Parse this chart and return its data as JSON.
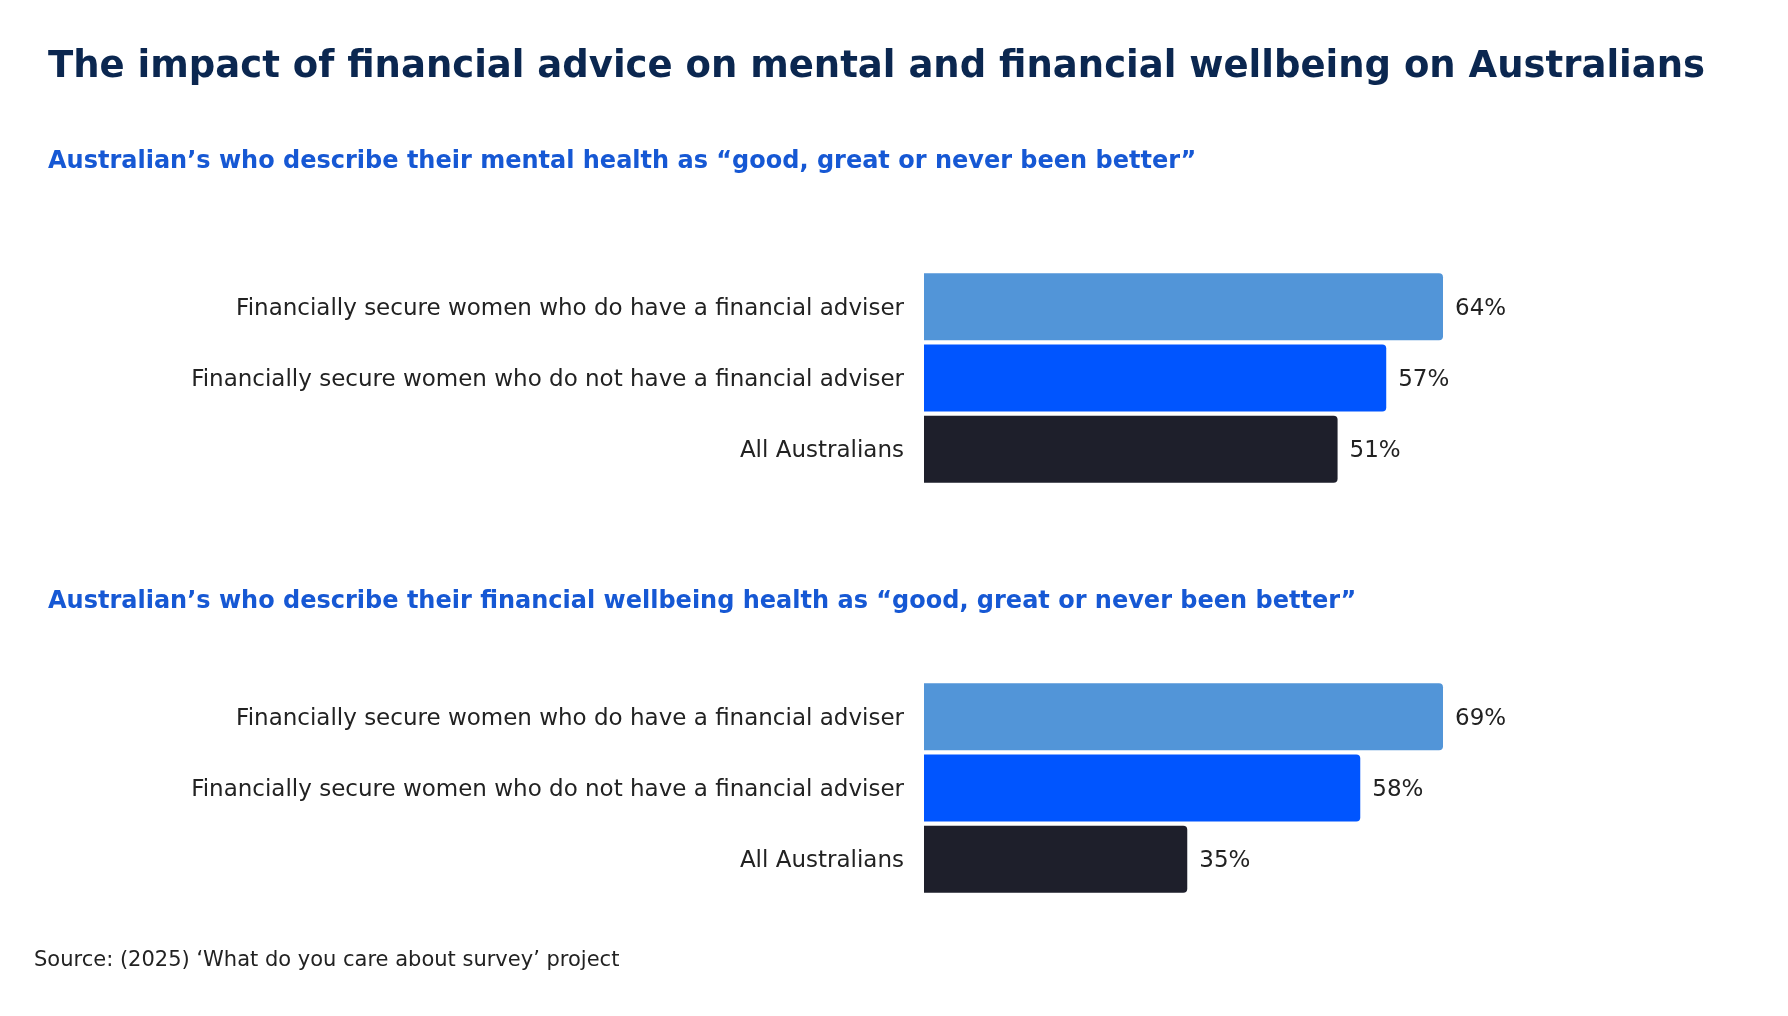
{
  "chart_data": [
    {
      "type": "bar",
      "orientation": "horizontal",
      "title": "The impact of financial advice on mental and financial wellbeing on Australians",
      "subtitle": "Australian’s who describe their mental health as “good, great or never been better”",
      "categories": [
        "Financially secure women who do have a financial adviser",
        "Financially secure women who do not have a financial adviser",
        "All Australians"
      ],
      "values": [
        64,
        57,
        51
      ],
      "colors": [
        "#5295d8",
        "#0055ff",
        "#1e1f2b"
      ],
      "value_labels": [
        "64%",
        "57%",
        "51%"
      ],
      "xlim": [
        0,
        64
      ]
    },
    {
      "type": "bar",
      "orientation": "horizontal",
      "subtitle": "Australian’s who describe their financial wellbeing health as “good, great or never been better”",
      "categories": [
        "Financially secure women who do have a financial adviser",
        "Financially secure women who do not have a financial adviser",
        "All Australians"
      ],
      "values": [
        69,
        58,
        35
      ],
      "colors": [
        "#5295d8",
        "#0055ff",
        "#1e1f2b"
      ],
      "value_labels": [
        "69%",
        "58%",
        "35%"
      ],
      "xlim": [
        0,
        69
      ],
      "annotations": [
        "Source: (2025) ‘What do you care about survey’ project"
      ]
    }
  ]
}
